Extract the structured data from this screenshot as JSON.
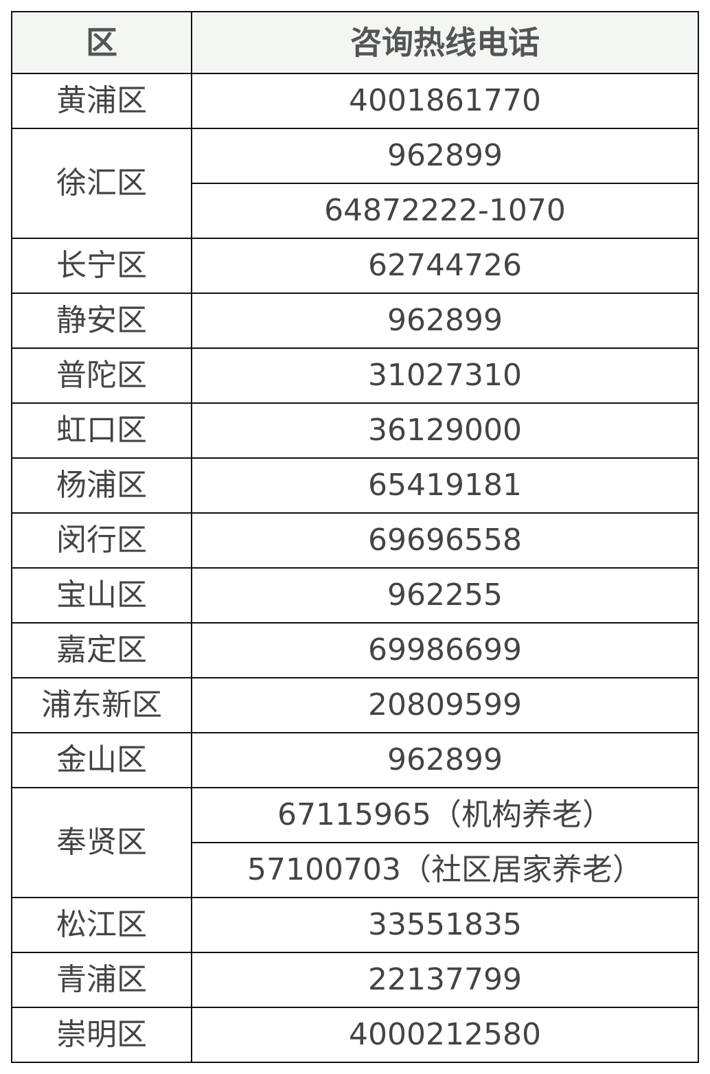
{
  "header": {
    "district": "区",
    "hotline": "咨询热线电话"
  },
  "rows": [
    {
      "district": "黄浦区",
      "phones": [
        "4001861770"
      ]
    },
    {
      "district": "徐汇区",
      "phones": [
        "962899",
        "64872222-1070"
      ]
    },
    {
      "district": "长宁区",
      "phones": [
        "62744726"
      ]
    },
    {
      "district": "静安区",
      "phones": [
        "962899"
      ]
    },
    {
      "district": "普陀区",
      "phones": [
        "31027310"
      ]
    },
    {
      "district": "虹口区",
      "phones": [
        "36129000"
      ]
    },
    {
      "district": "杨浦区",
      "phones": [
        "65419181"
      ]
    },
    {
      "district": "闵行区",
      "phones": [
        "69696558"
      ]
    },
    {
      "district": "宝山区",
      "phones": [
        "962255"
      ]
    },
    {
      "district": "嘉定区",
      "phones": [
        "69986699"
      ]
    },
    {
      "district": "浦东新区",
      "phones": [
        "20809599"
      ]
    },
    {
      "district": "金山区",
      "phones": [
        "962899"
      ]
    },
    {
      "district": "奉贤区",
      "phones": [
        "67115965（机构养老）",
        "57100703（社区居家养老）"
      ]
    },
    {
      "district": "松江区",
      "phones": [
        "33551835"
      ]
    },
    {
      "district": "青浦区",
      "phones": [
        "22137799"
      ]
    },
    {
      "district": "崇明区",
      "phones": [
        "4000212580"
      ]
    }
  ]
}
